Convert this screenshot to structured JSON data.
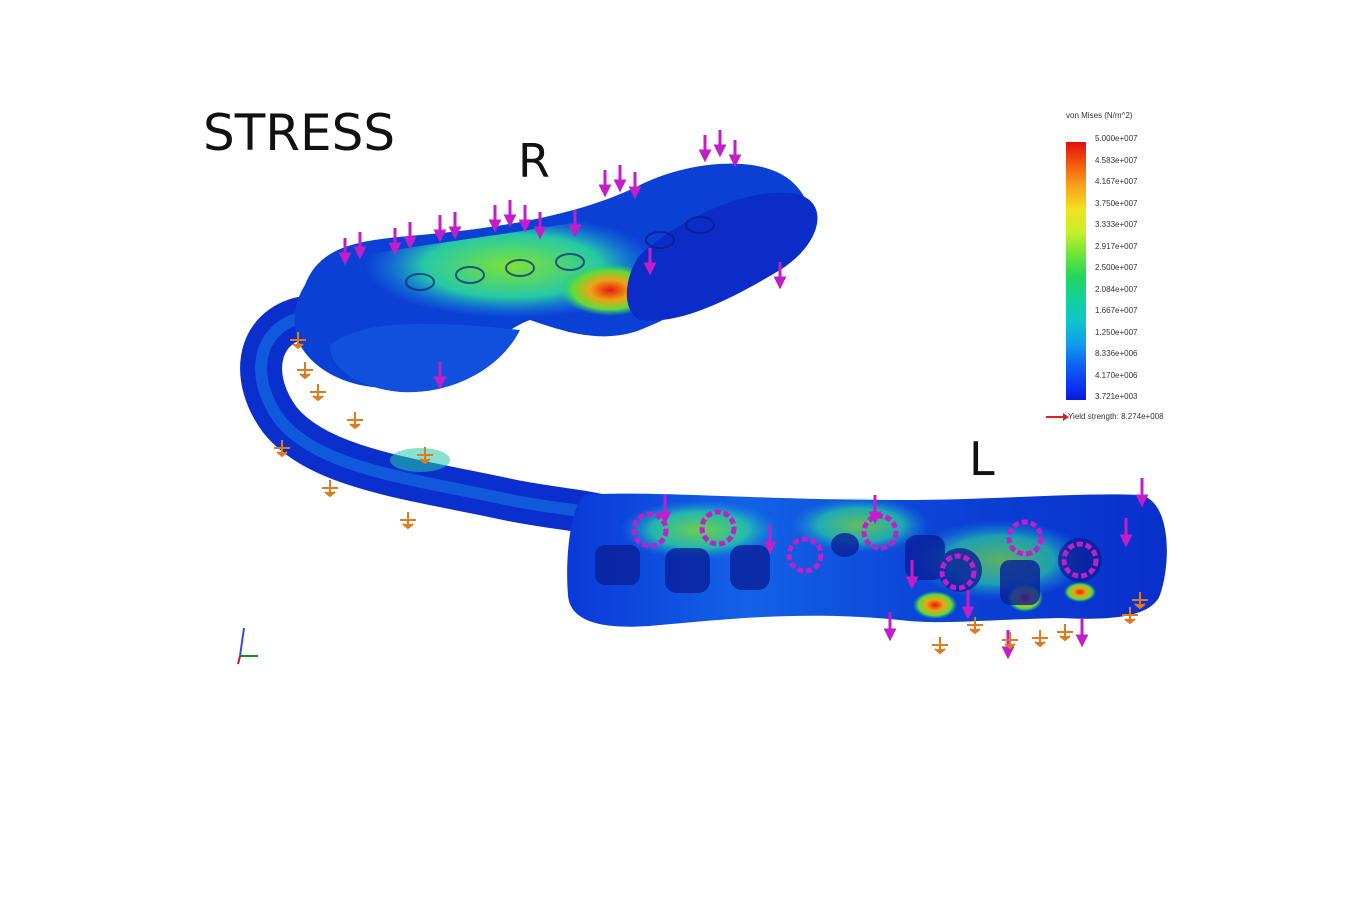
{
  "labels": {
    "title": "STRESS",
    "right_side": "R",
    "left_side": "L"
  },
  "legend": {
    "title": "von Mises (N/m^2)",
    "ticks": [
      "5.000e+007",
      "4.583e+007",
      "4.167e+007",
      "3.750e+007",
      "3.333e+007",
      "2.917e+007",
      "2.500e+007",
      "2.084e+007",
      "1.667e+007",
      "1.250e+007",
      "8.336e+006",
      "4.170e+006",
      "3.721e+003"
    ],
    "yield": "Yield strength: 8.274e+008",
    "max_color": "#e01010",
    "min_color": "#0b1ad6"
  },
  "colors": {
    "load_arrow": "#c21ec9",
    "fixture_arrow": "#e07a1f"
  }
}
